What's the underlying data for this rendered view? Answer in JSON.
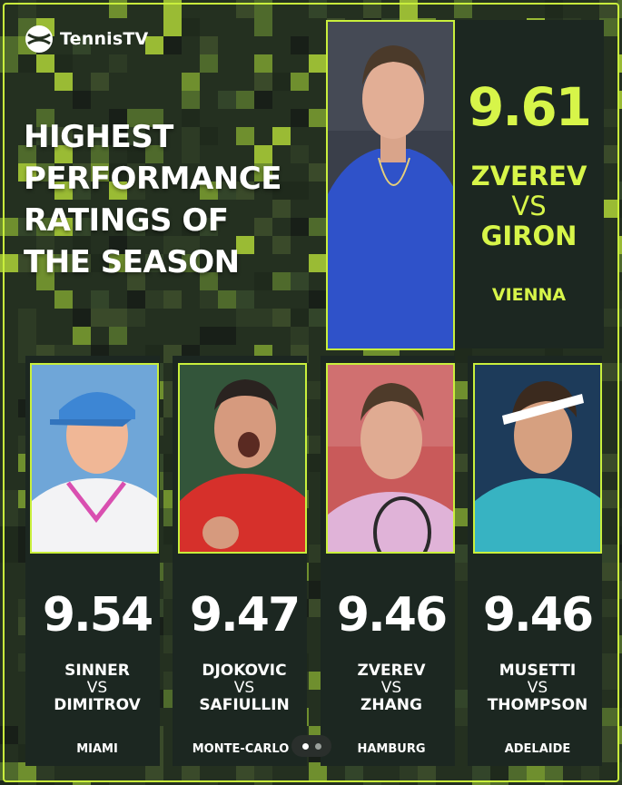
{
  "brand": {
    "name": "TennisTV"
  },
  "headline": [
    "HIGHEST",
    "PERFORMANCE",
    "RATINGS OF",
    "THE SEASON"
  ],
  "featured": {
    "score": "9.61",
    "player1": "ZVEREV",
    "vs": "VS",
    "player2": "GIRON",
    "venue": "VIENNA"
  },
  "cards": [
    {
      "score": "9.54",
      "player1": "SINNER",
      "vs": "VS",
      "player2": "DIMITROV",
      "venue": "MIAMI"
    },
    {
      "score": "9.47",
      "player1": "DJOKOVIC",
      "vs": "VS",
      "player2": "SAFIULLIN",
      "venue": "MONTE-CARLO"
    },
    {
      "score": "9.46",
      "player1": "ZVEREV",
      "vs": "VS",
      "player2": "ZHANG",
      "venue": "HAMBURG"
    },
    {
      "score": "9.46",
      "player1": "MUSETTI",
      "vs": "VS",
      "player2": "THOMPSON",
      "venue": "ADELAIDE"
    }
  ],
  "colors": {
    "accent": "#c9ef3c",
    "panel": "#1c2721"
  }
}
